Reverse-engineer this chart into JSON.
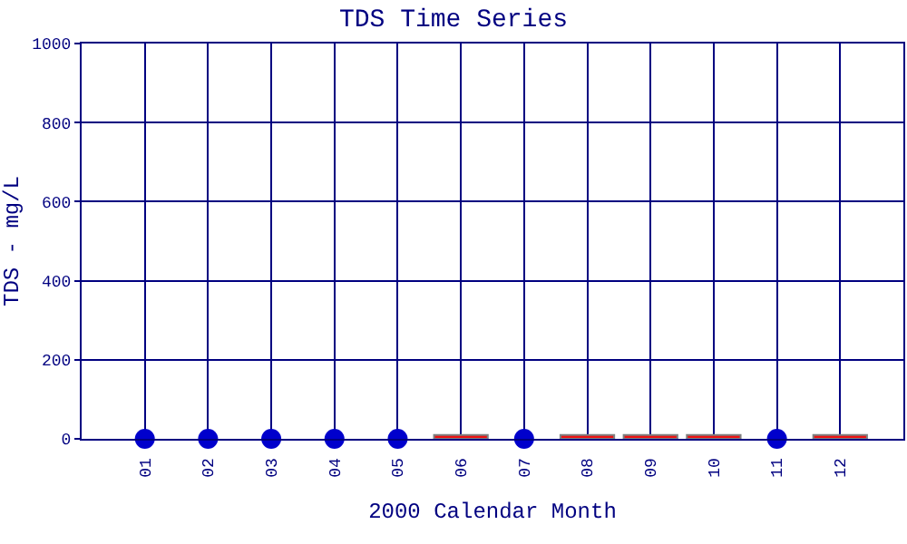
{
  "chart_data": {
    "type": "scatter",
    "title": "TDS Time Series",
    "xlabel": "2000 Calendar Month",
    "ylabel": "TDS - mg/L",
    "categories": [
      "01",
      "02",
      "03",
      "04",
      "05",
      "06",
      "07",
      "08",
      "09",
      "10",
      "11",
      "12"
    ],
    "series": [
      {
        "color": "#0000cc",
        "values": [
          0,
          0,
          0,
          0,
          0,
          null,
          0,
          null,
          null,
          null,
          0,
          null
        ]
      },
      {
        "type": "bar",
        "color": "#ee1111",
        "values": [
          null,
          null,
          null,
          null,
          null,
          10,
          null,
          10,
          10,
          10,
          null,
          10
        ]
      }
    ],
    "ylim": [
      0,
      1000
    ],
    "yticks": [
      0,
      200,
      400,
      600,
      800,
      1000
    ],
    "grid": true,
    "marker": "circle"
  }
}
